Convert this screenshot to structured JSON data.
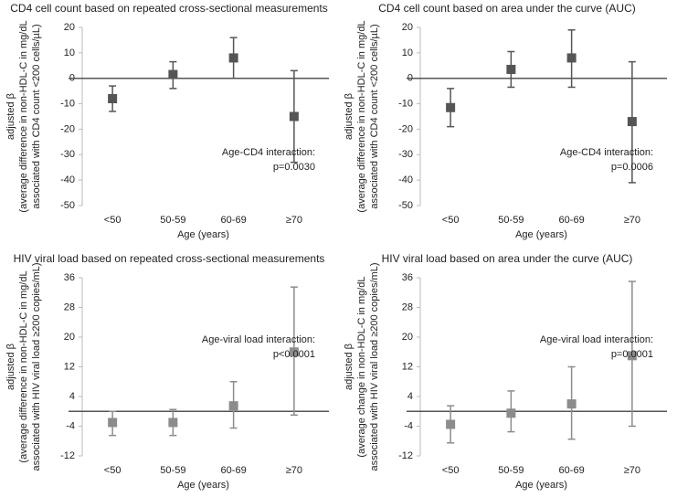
{
  "chart_data": [
    {
      "type": "errorbar",
      "title": "CD4 cell count based on repeated cross-sectional measurements",
      "y_label": [
        "adjusted β",
        "(average difference in non-HDL-C in mg/dL",
        "associated with CD4 count <200 cells/µL)"
      ],
      "x_label": "Age (years)",
      "categories": [
        "<50",
        "50-59",
        "60-69",
        "≥70"
      ],
      "values": [
        -8,
        1.5,
        8,
        -15
      ],
      "lower": [
        -13,
        -4,
        0,
        -33
      ],
      "upper": [
        -3,
        6.5,
        16,
        3
      ],
      "color": "#555555",
      "ylim": [
        -50,
        20
      ],
      "yticks": [
        -50,
        -40,
        -30,
        -20,
        -10,
        0,
        10,
        20
      ],
      "annotation": [
        "Age-CD4 interaction:",
        "p=0.0030"
      ]
    },
    {
      "type": "errorbar",
      "title": "CD4 cell count based on area under the curve (AUC)",
      "y_label": [
        "adjusted β",
        "(average difference in non-HDL-C in mg/dL",
        "associated with CD4 count <200 cells/µL)"
      ],
      "x_label": "Age (years)",
      "categories": [
        "<50",
        "50-59",
        "60-69",
        "≥70"
      ],
      "values": [
        -11.5,
        3.5,
        8,
        -17
      ],
      "lower": [
        -19,
        -3.5,
        -3.5,
        -41
      ],
      "upper": [
        -4,
        10.5,
        19,
        6.5
      ],
      "color": "#555555",
      "ylim": [
        -50,
        20
      ],
      "yticks": [
        -50,
        -40,
        -30,
        -20,
        -10,
        0,
        10,
        20
      ],
      "annotation": [
        "Age-CD4 interaction:",
        "p=0.0006"
      ]
    },
    {
      "type": "errorbar",
      "title": "HIV viral load based on repeated cross-sectional measurements",
      "y_label": [
        "adjusted β",
        "(average difference in non-HDL-C in mg/dL",
        "associated with HIV viral load ≥200 copies/mL)"
      ],
      "x_label": "Age (years)",
      "categories": [
        "<50",
        "50-59",
        "60-69",
        "≥70"
      ],
      "values": [
        -3,
        -3,
        1.5,
        16
      ],
      "lower": [
        -6.5,
        -6.5,
        -4.5,
        -1
      ],
      "upper": [
        0,
        0.5,
        8,
        33.5
      ],
      "color": "#8c8c8c",
      "ylim": [
        -12,
        36
      ],
      "yticks": [
        -12,
        -4,
        4,
        12,
        20,
        28,
        36
      ],
      "annotation": [
        "Age-viral load interaction:",
        "p<0.0001"
      ]
    },
    {
      "type": "errorbar",
      "title": "HIV viral load based on area under the curve (AUC)",
      "y_label": [
        "adjusted β",
        "(average change in non-HDL-C in mg/dL",
        "associated with HIV viral load ≥200 copies/mL)"
      ],
      "x_label": "Age (years)",
      "categories": [
        "<50",
        "50-59",
        "60-69",
        "≥70"
      ],
      "values": [
        -3.5,
        -0.5,
        2,
        15
      ],
      "lower": [
        -8.5,
        -5.5,
        -7.5,
        -4
      ],
      "upper": [
        1.5,
        5.5,
        12,
        35
      ],
      "color": "#8c8c8c",
      "ylim": [
        -12,
        36
      ],
      "yticks": [
        -12,
        -4,
        4,
        12,
        20,
        28,
        36
      ],
      "annotation": [
        "Age-viral load interaction:",
        "p=0.0001"
      ]
    }
  ]
}
